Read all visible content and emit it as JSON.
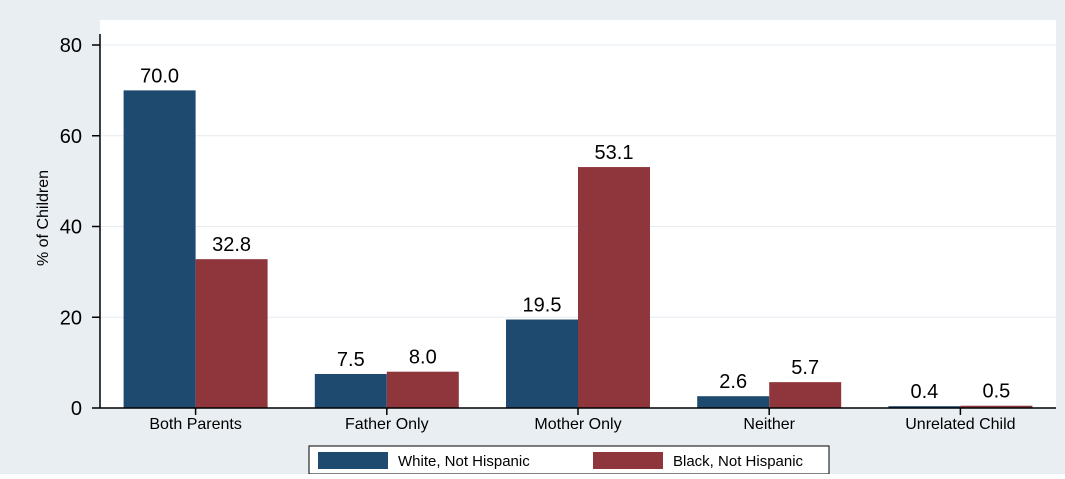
{
  "chart_data": {
    "type": "bar",
    "title": "",
    "xlabel": "",
    "ylabel": "% of Children",
    "ylim": [
      0,
      80
    ],
    "yticks": [
      0,
      20,
      40,
      60,
      80
    ],
    "categories": [
      "Both Parents",
      "Father Only",
      "Mother Only",
      "Neither",
      "Unrelated Child"
    ],
    "series": [
      {
        "name": "White, Not Hispanic",
        "color": "#1f4a6f",
        "values": [
          70.0,
          7.5,
          19.5,
          2.6,
          0.4
        ],
        "labels": [
          "70.0",
          "7.5",
          "19.5",
          "2.6",
          "0.4"
        ]
      },
      {
        "name": "Black, Not Hispanic",
        "color": "#8f363c",
        "values": [
          32.8,
          8.0,
          53.1,
          5.7,
          0.5
        ],
        "labels": [
          "32.8",
          "8.0",
          "53.1",
          "5.7",
          "0.5"
        ]
      }
    ],
    "grid": true,
    "legend_position": "bottom",
    "colors": {
      "background": "#e9eef2",
      "plot_background": "#ffffff",
      "grid": "#e6ecf0"
    }
  }
}
